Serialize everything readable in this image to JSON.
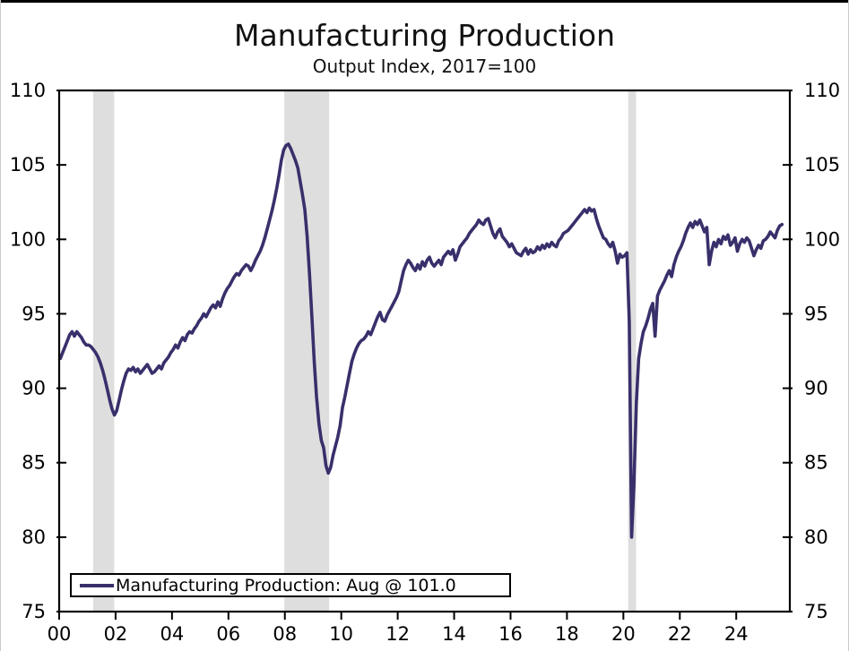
{
  "page": {
    "title": "Manufacturing Production",
    "subtitle": "Output Index, 2017=100"
  },
  "legend": {
    "label": "Manufacturing Production: Aug @ 101.0"
  },
  "chart_data": {
    "type": "line",
    "title": "Manufacturing Production",
    "subtitle": "Output Index, 2017=100",
    "grid": false,
    "legend_position": "bottom-left",
    "ylim": [
      75,
      110
    ],
    "y_ticks": [
      75,
      80,
      85,
      90,
      95,
      100,
      105,
      110
    ],
    "xlim_years": [
      2000,
      2025.9
    ],
    "x_tick_years": [
      2000,
      2002,
      2004,
      2006,
      2008,
      2010,
      2012,
      2014,
      2016,
      2018,
      2020,
      2022,
      2024
    ],
    "x_tick_labels": [
      "00",
      "02",
      "04",
      "06",
      "08",
      "10",
      "12",
      "14",
      "16",
      "18",
      "20",
      "22",
      "24"
    ],
    "line_color": "#38306b",
    "recession_band_color": "#dedede",
    "recession_bands_years": [
      [
        2001.2,
        2001.95
      ],
      [
        2007.98,
        2009.57
      ],
      [
        2020.17,
        2020.45
      ]
    ],
    "series": [
      {
        "name": "Manufacturing Production",
        "latest_label": "Aug @ 101.0",
        "frequency": "monthly",
        "start": "2000-01",
        "end": "2025-08",
        "start_year": 2000,
        "values": [
          92.0,
          92.4,
          92.8,
          93.2,
          93.6,
          93.8,
          93.5,
          93.8,
          93.6,
          93.4,
          93.1,
          92.9,
          92.9,
          92.8,
          92.6,
          92.4,
          92.1,
          91.7,
          91.2,
          90.6,
          89.9,
          89.2,
          88.6,
          88.2,
          88.5,
          89.2,
          89.9,
          90.5,
          91.0,
          91.3,
          91.2,
          91.4,
          91.1,
          91.3,
          91.0,
          91.2,
          91.4,
          91.6,
          91.3,
          91.0,
          91.1,
          91.3,
          91.5,
          91.3,
          91.7,
          91.9,
          92.1,
          92.4,
          92.6,
          92.9,
          92.7,
          93.1,
          93.4,
          93.2,
          93.6,
          93.8,
          93.7,
          94.0,
          94.2,
          94.5,
          94.7,
          95.0,
          94.8,
          95.1,
          95.4,
          95.6,
          95.4,
          95.8,
          95.5,
          96.0,
          96.4,
          96.7,
          96.9,
          97.2,
          97.5,
          97.7,
          97.6,
          97.9,
          98.1,
          98.3,
          98.2,
          97.9,
          98.2,
          98.6,
          98.9,
          99.2,
          99.6,
          100.1,
          100.7,
          101.3,
          101.9,
          102.6,
          103.4,
          104.3,
          105.3,
          106.0,
          106.3,
          106.4,
          106.1,
          105.7,
          105.3,
          104.8,
          103.9,
          103.0,
          102.0,
          100.2,
          97.6,
          94.8,
          91.8,
          89.4,
          87.6,
          86.5,
          86.0,
          84.8,
          84.3,
          84.7,
          85.5,
          86.1,
          86.7,
          87.5,
          88.7,
          89.4,
          90.2,
          91.0,
          91.8,
          92.3,
          92.7,
          93.0,
          93.2,
          93.3,
          93.5,
          93.8,
          93.6,
          94.0,
          94.4,
          94.8,
          95.1,
          94.6,
          94.5,
          94.9,
          95.2,
          95.5,
          95.8,
          96.1,
          96.5,
          97.2,
          97.9,
          98.3,
          98.6,
          98.4,
          98.1,
          97.9,
          98.3,
          98.0,
          98.5,
          98.2,
          98.6,
          98.8,
          98.4,
          98.2,
          98.4,
          98.6,
          98.3,
          98.8,
          99.0,
          99.2,
          99.0,
          99.3,
          98.6,
          99.0,
          99.5,
          99.7,
          99.9,
          100.1,
          100.4,
          100.6,
          100.8,
          101.0,
          101.3,
          101.1,
          101.0,
          101.3,
          101.4,
          100.9,
          100.4,
          100.1,
          100.5,
          100.7,
          100.2,
          100.0,
          99.8,
          99.5,
          99.7,
          99.4,
          99.1,
          99.0,
          98.9,
          99.2,
          99.4,
          99.0,
          99.3,
          99.1,
          99.2,
          99.5,
          99.3,
          99.6,
          99.4,
          99.7,
          99.5,
          99.8,
          99.6,
          99.5,
          99.9,
          100.1,
          100.4,
          100.5,
          100.6,
          100.8,
          101.0,
          101.2,
          101.4,
          101.6,
          101.8,
          102.0,
          101.8,
          102.1,
          101.9,
          102.0,
          101.4,
          100.9,
          100.5,
          100.1,
          100.0,
          99.7,
          99.5,
          99.8,
          99.2,
          98.4,
          99.0,
          98.8,
          98.9,
          99.1,
          94.5,
          80.0,
          83.5,
          89.0,
          92.0,
          93.0,
          93.8,
          94.2,
          94.7,
          95.3,
          95.7,
          93.5,
          96.2,
          96.6,
          96.9,
          97.2,
          97.6,
          97.9,
          97.5,
          98.3,
          98.8,
          99.2,
          99.5,
          99.9,
          100.4,
          100.8,
          101.1,
          100.8,
          101.2,
          101.0,
          101.3,
          100.9,
          100.5,
          100.8,
          98.3,
          99.2,
          99.8,
          99.5,
          100.0,
          99.7,
          100.2,
          100.0,
          100.3,
          99.6,
          99.8,
          100.1,
          99.2,
          99.7,
          100.0,
          99.8,
          100.1,
          99.9,
          99.4,
          98.9,
          99.3,
          99.6,
          99.4,
          99.9,
          100.0,
          100.2,
          100.5,
          100.3,
          100.1,
          100.6,
          100.9,
          101.0
        ]
      }
    ]
  }
}
